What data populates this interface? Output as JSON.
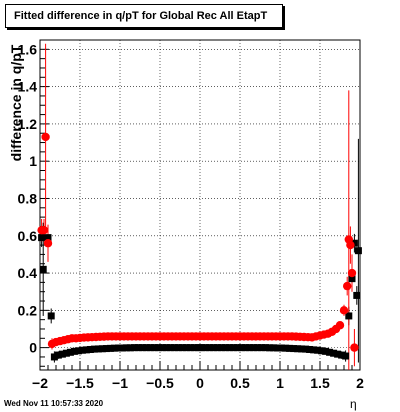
{
  "title": "Fitted difference in q/pT for Global Rec All EtapT",
  "footer_timestamp": "Wed Nov 11 10:57:33 2020",
  "chart_data": {
    "type": "scatter",
    "title": "Fitted difference in q/pT for Global Rec All EtapT",
    "xlabel": "η",
    "ylabel": "difference in q/pT",
    "xlim": [
      -2.0,
      2.0
    ],
    "ylim": [
      -0.12,
      1.65
    ],
    "xticks": [
      -2,
      -1.5,
      -1,
      -0.5,
      0,
      0.5,
      1,
      1.5,
      2
    ],
    "xtick_labels": [
      "−2",
      "−1.5",
      "−1",
      "−0.5",
      "0",
      "0.5",
      "1",
      "1.5",
      "2"
    ],
    "yticks": [
      0,
      0.2,
      0.4,
      0.6,
      0.8,
      1,
      1.2,
      1.4,
      1.6
    ],
    "ytick_labels": [
      "0",
      "0.2",
      "0.4",
      "0.6",
      "0.8",
      "1",
      "1.2",
      "1.4",
      "1.6"
    ],
    "grid": true,
    "series": [
      {
        "color": "#000000",
        "marker": "square",
        "points": [
          [
            -1.98,
            0.59,
            0.05
          ],
          [
            -1.96,
            0.42,
            0.25
          ],
          [
            -1.9,
            0.59,
            0.06
          ],
          [
            -1.86,
            0.17,
            0.04
          ],
          [
            -1.82,
            -0.05,
            0.03
          ],
          [
            -1.77,
            -0.04,
            0.02
          ],
          [
            -1.72,
            -0.035,
            0.01
          ],
          [
            -1.67,
            -0.03,
            0.01
          ],
          [
            -1.62,
            -0.025,
            0.005
          ],
          [
            -1.57,
            -0.02,
            0.005
          ],
          [
            -1.52,
            -0.017,
            0.005
          ],
          [
            -1.47,
            -0.014,
            0.004
          ],
          [
            -1.42,
            -0.012,
            0.004
          ],
          [
            -1.37,
            -0.01,
            0.004
          ],
          [
            -1.32,
            -0.008,
            0.003
          ],
          [
            -1.27,
            -0.007,
            0.003
          ],
          [
            -1.22,
            -0.006,
            0.003
          ],
          [
            -1.17,
            -0.005,
            0.003
          ],
          [
            -1.12,
            -0.004,
            0.003
          ],
          [
            -1.07,
            -0.003,
            0.003
          ],
          [
            -1.02,
            -0.002,
            0.003
          ],
          [
            -0.97,
            -0.002,
            0.003
          ],
          [
            -0.92,
            -0.001,
            0.003
          ],
          [
            -0.87,
            -0.001,
            0.003
          ],
          [
            -0.82,
            0.0,
            0.003
          ],
          [
            -0.77,
            0.0,
            0.003
          ],
          [
            -0.72,
            0.0,
            0.003
          ],
          [
            -0.67,
            0.0,
            0.003
          ],
          [
            -0.62,
            0.0,
            0.003
          ],
          [
            -0.57,
            0.0,
            0.003
          ],
          [
            -0.52,
            0.0,
            0.003
          ],
          [
            -0.47,
            0.0,
            0.003
          ],
          [
            -0.42,
            0.0,
            0.003
          ],
          [
            -0.37,
            0.0,
            0.003
          ],
          [
            -0.32,
            0.0,
            0.003
          ],
          [
            -0.27,
            0.0,
            0.003
          ],
          [
            -0.22,
            0.0,
            0.003
          ],
          [
            -0.17,
            0.0,
            0.003
          ],
          [
            -0.12,
            0.0,
            0.003
          ],
          [
            -0.07,
            0.0,
            0.003
          ],
          [
            -0.02,
            0.0,
            0.003
          ],
          [
            0.02,
            0.0,
            0.003
          ],
          [
            0.07,
            0.0,
            0.003
          ],
          [
            0.12,
            0.0,
            0.003
          ],
          [
            0.17,
            0.0,
            0.003
          ],
          [
            0.22,
            0.0,
            0.003
          ],
          [
            0.27,
            0.0,
            0.003
          ],
          [
            0.32,
            0.0,
            0.003
          ],
          [
            0.37,
            0.0,
            0.003
          ],
          [
            0.42,
            0.0,
            0.003
          ],
          [
            0.47,
            0.0,
            0.003
          ],
          [
            0.52,
            0.0,
            0.003
          ],
          [
            0.57,
            0.0,
            0.003
          ],
          [
            0.62,
            0.0,
            0.003
          ],
          [
            0.67,
            0.0,
            0.003
          ],
          [
            0.72,
            0.0,
            0.003
          ],
          [
            0.77,
            0.0,
            0.003
          ],
          [
            0.82,
            0.0,
            0.003
          ],
          [
            0.87,
            -0.001,
            0.003
          ],
          [
            0.92,
            -0.001,
            0.003
          ],
          [
            0.97,
            -0.002,
            0.003
          ],
          [
            1.02,
            -0.002,
            0.003
          ],
          [
            1.07,
            -0.003,
            0.003
          ],
          [
            1.12,
            -0.004,
            0.003
          ],
          [
            1.17,
            -0.005,
            0.003
          ],
          [
            1.22,
            -0.006,
            0.003
          ],
          [
            1.27,
            -0.007,
            0.003
          ],
          [
            1.32,
            -0.008,
            0.003
          ],
          [
            1.37,
            -0.01,
            0.004
          ],
          [
            1.42,
            -0.012,
            0.004
          ],
          [
            1.47,
            -0.014,
            0.004
          ],
          [
            1.52,
            -0.017,
            0.005
          ],
          [
            1.57,
            -0.02,
            0.005
          ],
          [
            1.62,
            -0.025,
            0.005
          ],
          [
            1.67,
            -0.03,
            0.01
          ],
          [
            1.72,
            -0.035,
            0.01
          ],
          [
            1.77,
            -0.04,
            0.02
          ],
          [
            1.82,
            -0.045,
            0.03
          ],
          [
            1.86,
            0.17,
            0.05
          ],
          [
            1.9,
            0.37,
            0.06
          ],
          [
            1.93,
            0.56,
            0.05
          ],
          [
            1.96,
            0.28,
            0.05
          ],
          [
            1.98,
            0.52,
            0.6
          ]
        ]
      },
      {
        "color": "#ff0000",
        "marker": "circle",
        "points": [
          [
            -1.98,
            0.63,
            0.06
          ],
          [
            -1.95,
            0.63,
            0.06
          ],
          [
            -1.93,
            1.13,
            0.5
          ],
          [
            -1.9,
            0.56,
            0.1
          ],
          [
            -1.85,
            0.02,
            0.03
          ],
          [
            -1.8,
            0.03,
            0.02
          ],
          [
            -1.75,
            0.035,
            0.015
          ],
          [
            -1.7,
            0.04,
            0.01
          ],
          [
            -1.65,
            0.045,
            0.008
          ],
          [
            -1.6,
            0.05,
            0.006
          ],
          [
            -1.55,
            0.05,
            0.005
          ],
          [
            -1.5,
            0.052,
            0.005
          ],
          [
            -1.45,
            0.054,
            0.004
          ],
          [
            -1.4,
            0.055,
            0.004
          ],
          [
            -1.35,
            0.056,
            0.004
          ],
          [
            -1.3,
            0.057,
            0.003
          ],
          [
            -1.25,
            0.058,
            0.003
          ],
          [
            -1.2,
            0.059,
            0.003
          ],
          [
            -1.15,
            0.06,
            0.003
          ],
          [
            -1.1,
            0.06,
            0.003
          ],
          [
            -1.05,
            0.06,
            0.003
          ],
          [
            -1.0,
            0.06,
            0.003
          ],
          [
            -0.95,
            0.06,
            0.003
          ],
          [
            -0.9,
            0.06,
            0.003
          ],
          [
            -0.85,
            0.06,
            0.003
          ],
          [
            -0.8,
            0.06,
            0.003
          ],
          [
            -0.75,
            0.06,
            0.003
          ],
          [
            -0.7,
            0.06,
            0.003
          ],
          [
            -0.65,
            0.06,
            0.003
          ],
          [
            -0.6,
            0.06,
            0.003
          ],
          [
            -0.55,
            0.06,
            0.003
          ],
          [
            -0.5,
            0.06,
            0.003
          ],
          [
            -0.45,
            0.06,
            0.003
          ],
          [
            -0.4,
            0.06,
            0.003
          ],
          [
            -0.35,
            0.06,
            0.003
          ],
          [
            -0.3,
            0.06,
            0.003
          ],
          [
            -0.25,
            0.06,
            0.003
          ],
          [
            -0.2,
            0.06,
            0.003
          ],
          [
            -0.15,
            0.06,
            0.003
          ],
          [
            -0.1,
            0.06,
            0.003
          ],
          [
            -0.05,
            0.06,
            0.003
          ],
          [
            0.0,
            0.06,
            0.003
          ],
          [
            0.05,
            0.06,
            0.003
          ],
          [
            0.1,
            0.06,
            0.003
          ],
          [
            0.15,
            0.06,
            0.003
          ],
          [
            0.2,
            0.06,
            0.003
          ],
          [
            0.25,
            0.06,
            0.003
          ],
          [
            0.3,
            0.06,
            0.003
          ],
          [
            0.35,
            0.06,
            0.003
          ],
          [
            0.4,
            0.06,
            0.003
          ],
          [
            0.45,
            0.06,
            0.003
          ],
          [
            0.5,
            0.06,
            0.003
          ],
          [
            0.55,
            0.06,
            0.003
          ],
          [
            0.6,
            0.06,
            0.003
          ],
          [
            0.65,
            0.06,
            0.003
          ],
          [
            0.7,
            0.06,
            0.003
          ],
          [
            0.75,
            0.06,
            0.003
          ],
          [
            0.8,
            0.06,
            0.003
          ],
          [
            0.85,
            0.06,
            0.003
          ],
          [
            0.9,
            0.06,
            0.003
          ],
          [
            0.95,
            0.06,
            0.003
          ],
          [
            1.0,
            0.06,
            0.003
          ],
          [
            1.05,
            0.06,
            0.003
          ],
          [
            1.1,
            0.06,
            0.003
          ],
          [
            1.15,
            0.06,
            0.003
          ],
          [
            1.2,
            0.059,
            0.003
          ],
          [
            1.25,
            0.058,
            0.003
          ],
          [
            1.3,
            0.057,
            0.003
          ],
          [
            1.35,
            0.056,
            0.004
          ],
          [
            1.4,
            0.055,
            0.004
          ],
          [
            1.45,
            0.06,
            0.004
          ],
          [
            1.5,
            0.065,
            0.005
          ],
          [
            1.55,
            0.07,
            0.005
          ],
          [
            1.6,
            0.075,
            0.006
          ],
          [
            1.65,
            0.085,
            0.008
          ],
          [
            1.7,
            0.1,
            0.01
          ],
          [
            1.75,
            0.12,
            0.015
          ],
          [
            1.8,
            0.2,
            0.03
          ],
          [
            1.84,
            0.33,
            0.05
          ],
          [
            1.86,
            0.58,
            0.8
          ],
          [
            1.88,
            0.55,
            0.1
          ],
          [
            1.9,
            0.4,
            0.1
          ],
          [
            1.93,
            0.0,
            0.1
          ]
        ]
      }
    ]
  }
}
